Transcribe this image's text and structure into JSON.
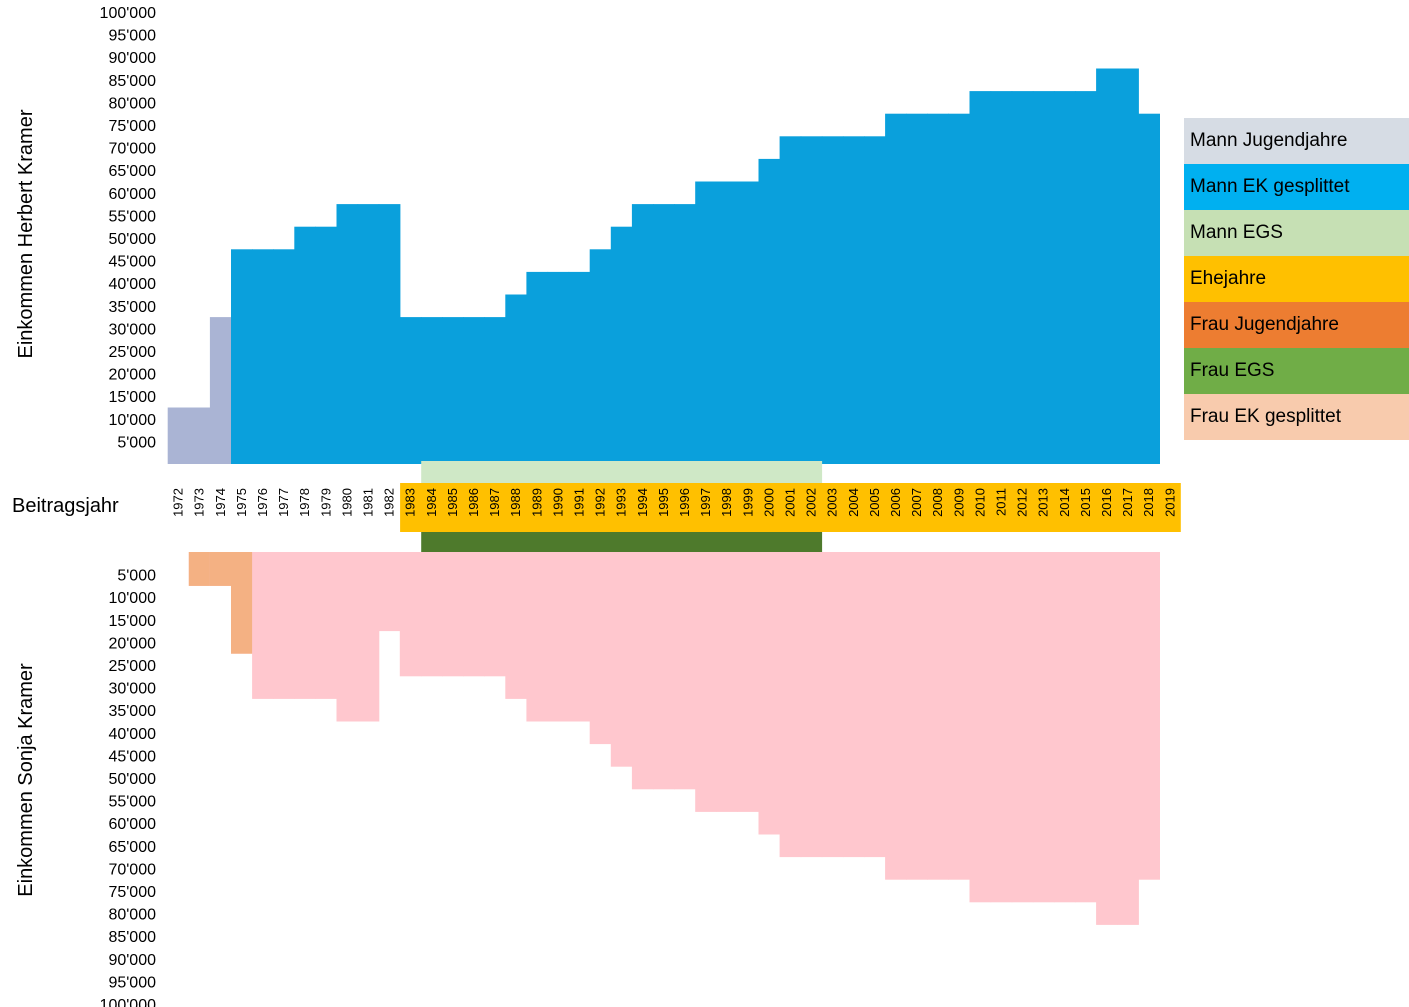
{
  "chart_data": {
    "type": "bar",
    "ylabel_top": "Einkommen Herbert Kramer",
    "ylabel_bottom": "Einkommen Sonja Kramer",
    "xlabel": "Beitragsjahr",
    "ylim": [
      0,
      100000
    ],
    "yticks": [
      "5'000",
      "10'000",
      "15'000",
      "20'000",
      "25'000",
      "30'000",
      "35'000",
      "40'000",
      "45'000",
      "50'000",
      "55'000",
      "60'000",
      "65'000",
      "70'000",
      "75'000",
      "80'000",
      "85'000",
      "90'000",
      "95'000",
      "100'000"
    ],
    "years": [
      1972,
      1973,
      1974,
      1975,
      1976,
      1977,
      1978,
      1979,
      1980,
      1981,
      1982,
      1983,
      1984,
      1985,
      1986,
      1987,
      1988,
      1989,
      1990,
      1991,
      1992,
      1993,
      1994,
      1995,
      1996,
      1997,
      1998,
      1999,
      2000,
      2001,
      2002,
      2003,
      2004,
      2005,
      2006,
      2007,
      2008,
      2009,
      2010,
      2011,
      2012,
      2013,
      2014,
      2015,
      2016,
      2017,
      2018,
      2019
    ],
    "man_income": [
      12500,
      12500,
      32500,
      47500,
      47500,
      47500,
      52500,
      52500,
      57500,
      57500,
      57500,
      32500,
      32500,
      32500,
      32500,
      32500,
      37500,
      42500,
      42500,
      42500,
      47500,
      52500,
      57500,
      57500,
      57500,
      62500,
      62500,
      62500,
      67500,
      72500,
      72500,
      72500,
      72500,
      72500,
      77500,
      77500,
      77500,
      77500,
      82500,
      82500,
      82500,
      82500,
      82500,
      82500,
      87500,
      87500,
      77500,
      0
    ],
    "man_category": [
      "Mann Jugendjahre",
      "Mann Jugendjahre",
      "Mann Jugendjahre",
      "Mann EK gesplittet",
      "Mann EK gesplittet",
      "Mann EK gesplittet",
      "Mann EK gesplittet",
      "Mann EK gesplittet",
      "Mann EK gesplittet",
      "Mann EK gesplittet",
      "Mann EK gesplittet",
      "Mann EK gesplittet",
      "Mann EK gesplittet",
      "Mann EK gesplittet",
      "Mann EK gesplittet",
      "Mann EK gesplittet",
      "Mann EK gesplittet",
      "Mann EK gesplittet",
      "Mann EK gesplittet",
      "Mann EK gesplittet",
      "Mann EK gesplittet",
      "Mann EK gesplittet",
      "Mann EK gesplittet",
      "Mann EK gesplittet",
      "Mann EK gesplittet",
      "Mann EK gesplittet",
      "Mann EK gesplittet",
      "Mann EK gesplittet",
      "Mann EK gesplittet",
      "Mann EK gesplittet",
      "Mann EK gesplittet",
      "Mann EK gesplittet",
      "Mann EK gesplittet",
      "Mann EK gesplittet",
      "Mann EK gesplittet",
      "Mann EK gesplittet",
      "Mann EK gesplittet",
      "Mann EK gesplittet",
      "Mann EK gesplittet",
      "Mann EK gesplittet",
      "Mann EK gesplittet",
      "Mann EK gesplittet",
      "Mann EK gesplittet",
      "Mann EK gesplittet",
      "Mann EK gesplittet",
      "Mann EK gesplittet",
      "Mann EK gesplittet",
      ""
    ],
    "woman_income": [
      0,
      7500,
      7500,
      22500,
      32500,
      32500,
      32500,
      32500,
      37500,
      37500,
      17500,
      27500,
      27500,
      27500,
      27500,
      27500,
      32500,
      37500,
      37500,
      37500,
      42500,
      47500,
      52500,
      52500,
      52500,
      57500,
      57500,
      57500,
      62500,
      67500,
      67500,
      67500,
      67500,
      67500,
      72500,
      72500,
      72500,
      72500,
      77500,
      77500,
      77500,
      77500,
      77500,
      77500,
      82500,
      82500,
      72500,
      0
    ],
    "woman_youth": [
      0,
      7500,
      7500,
      22500,
      0,
      0,
      0,
      0,
      0,
      0,
      0,
      0,
      0,
      0,
      0,
      0,
      0,
      0,
      0,
      0,
      0,
      0,
      0,
      0,
      0,
      0,
      0,
      0,
      0,
      0,
      0,
      0,
      0,
      0,
      0,
      0,
      0,
      0,
      0,
      0,
      0,
      0,
      0,
      0,
      0,
      0,
      0,
      0
    ],
    "mann_egs_years": [
      1984,
      2002
    ],
    "frau_egs_years": [
      1984,
      2002
    ],
    "ehejahre_years": [
      1983,
      2019
    ],
    "legend": [
      {
        "label": "Mann Jugendjahre",
        "color": "#d6dce4"
      },
      {
        "label": "Mann EK gesplittet",
        "color": "#00b0f0"
      },
      {
        "label": "Mann EGS",
        "color": "#c6e0b4"
      },
      {
        "label": "Ehejahre",
        "color": "#ffc000"
      },
      {
        "label": "Frau Jugendjahre",
        "color": "#ed7d31"
      },
      {
        "label": "Frau EGS",
        "color": "#70ad47"
      },
      {
        "label": "Frau EK gesplittet",
        "color": "#f8cbad"
      }
    ],
    "colors": {
      "man_youth_fill": "#aab4d4",
      "man_ek_fill": "#0aa0dc",
      "man_egs_fill": "#cfe8c6",
      "ehejahre_fill": "#ffc000",
      "woman_youth_fill": "#f4b183",
      "woman_egs_fill": "#4e7a2c",
      "woman_ek_fill": "#ffc7ce"
    }
  }
}
